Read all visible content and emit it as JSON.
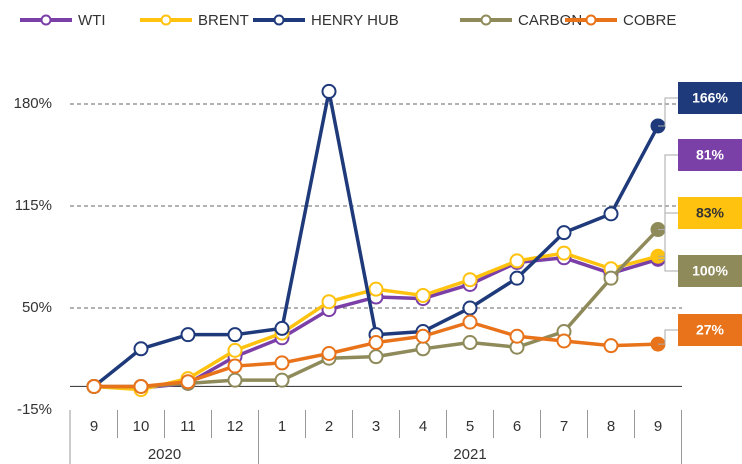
{
  "chart_data": {
    "type": "line",
    "groups": [
      {
        "label": "2020",
        "categories": [
          "9",
          "10",
          "11",
          "12"
        ]
      },
      {
        "label": "2021",
        "categories": [
          "1",
          "2",
          "3",
          "4",
          "5",
          "6",
          "7",
          "8",
          "9"
        ]
      }
    ],
    "series": [
      {
        "name": "WTI",
        "color": "#7b3fa8",
        "values": [
          0,
          -1,
          2,
          19,
          31,
          49,
          57,
          56,
          65,
          79,
          82,
          72,
          81
        ],
        "value_labels": [
          null,
          null,
          null,
          null,
          null,
          null,
          null,
          null,
          null,
          null,
          null,
          null,
          "81%"
        ]
      },
      {
        "name": "BRENT",
        "color": "#ffc20e",
        "values": [
          0,
          -2,
          5,
          23,
          34,
          54,
          62,
          58,
          68,
          80,
          85,
          75,
          83
        ],
        "value_labels": [
          null,
          null,
          null,
          null,
          null,
          null,
          null,
          null,
          null,
          null,
          null,
          null,
          "83%"
        ]
      },
      {
        "name": "HENRY HUB",
        "color": "#1f3a7a",
        "values": [
          0,
          24,
          33,
          33,
          37,
          188,
          33,
          35,
          50,
          69,
          98,
          110,
          166
        ],
        "value_labels": [
          null,
          null,
          null,
          null,
          null,
          null,
          null,
          null,
          null,
          null,
          null,
          null,
          "166%"
        ]
      },
      {
        "name": "CARBON",
        "color": "#8f8a5a",
        "values": [
          0,
          0,
          2,
          4,
          4,
          18,
          19,
          24,
          28,
          25,
          35,
          69,
          100
        ],
        "value_labels": [
          null,
          null,
          null,
          null,
          null,
          null,
          null,
          null,
          null,
          null,
          null,
          null,
          "100%"
        ]
      },
      {
        "name": "COBRE",
        "color": "#e8731a",
        "values": [
          0,
          0,
          3,
          13,
          15,
          21,
          28,
          32,
          41,
          32,
          29,
          26,
          27
        ],
        "value_labels": [
          null,
          null,
          null,
          null,
          null,
          null,
          null,
          null,
          null,
          null,
          null,
          null,
          "27%"
        ]
      }
    ],
    "ylim": [
      -15,
      200
    ],
    "yticks": [
      {
        "value": -15,
        "label": "-15%"
      },
      {
        "value": 50,
        "label": "50%"
      },
      {
        "value": 115,
        "label": "115%"
      },
      {
        "value": 180,
        "label": "180%"
      }
    ],
    "grid": true
  }
}
